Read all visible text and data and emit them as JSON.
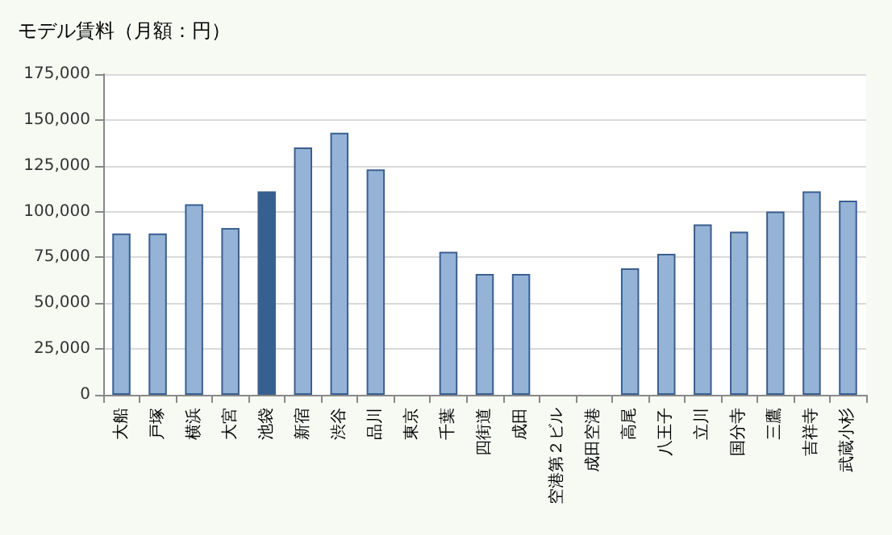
{
  "chart_data": {
    "type": "bar",
    "title": "モデル賃料（月額：円）",
    "categories": [
      "大船",
      "戸塚",
      "横浜",
      "大宮",
      "池袋",
      "新宿",
      "渋谷",
      "品川",
      "東京",
      "千葉",
      "四街道",
      "成田",
      "空港第２ビル",
      "成田空港",
      "高尾",
      "八王子",
      "立川",
      "国分寺",
      "三鷹",
      "吉祥寺",
      "武蔵小杉"
    ],
    "values": [
      88000,
      88000,
      104000,
      91000,
      111000,
      135000,
      143000,
      123000,
      null,
      78000,
      66000,
      66000,
      null,
      null,
      69000,
      77000,
      93000,
      89000,
      100000,
      111000,
      106000
    ],
    "colors": [
      "#95b3d7",
      "#95b3d7",
      "#95b3d7",
      "#95b3d7",
      "#376092",
      "#95b3d7",
      "#95b3d7",
      "#95b3d7",
      "#95b3d7",
      "#95b3d7",
      "#95b3d7",
      "#95b3d7",
      "#95b3d7",
      "#95b3d7",
      "#95b3d7",
      "#95b3d7",
      "#95b3d7",
      "#95b3d7",
      "#95b3d7",
      "#95b3d7",
      "#95b3d7"
    ],
    "ylim": [
      0,
      175000
    ],
    "yticks": [
      0,
      {
        "value": 25000,
        "label": "25,000"
      },
      {
        "value": 50000,
        "label": "50,000"
      },
      {
        "value": 75000,
        "label": "75,000"
      },
      {
        "value": 100000,
        "label": "100,000"
      },
      {
        "value": 125000,
        "label": "125,000"
      },
      {
        "value": 150000,
        "label": "150,000"
      },
      {
        "value": 175000,
        "label": "175,000"
      }
    ],
    "grid": "y"
  }
}
